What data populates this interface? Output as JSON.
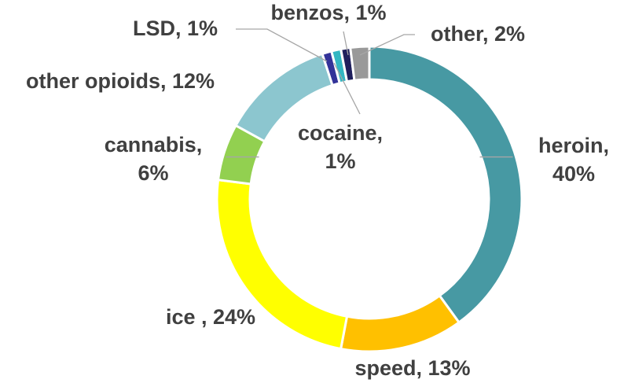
{
  "chart_data": {
    "type": "pie",
    "style": "donut",
    "title": "",
    "slices": [
      {
        "label": "heroin",
        "value": 40,
        "color": "#4799a3"
      },
      {
        "label": "speed",
        "value": 13,
        "color": "#ffc000"
      },
      {
        "label": "ice ",
        "value": 24,
        "color": "#ffff00"
      },
      {
        "label": "cannabis",
        "value": 6,
        "color": "#92d050"
      },
      {
        "label": "other opioids",
        "value": 12,
        "color": "#8cc6cf"
      },
      {
        "label": "LSD",
        "value": 1,
        "color": "#333399"
      },
      {
        "label": "cocaine",
        "value": 1,
        "color": "#33b6c2"
      },
      {
        "label": "benzos",
        "value": 1,
        "color": "#1f1f5c"
      },
      {
        "label": "other",
        "value": 2,
        "color": "#999999"
      }
    ]
  }
}
